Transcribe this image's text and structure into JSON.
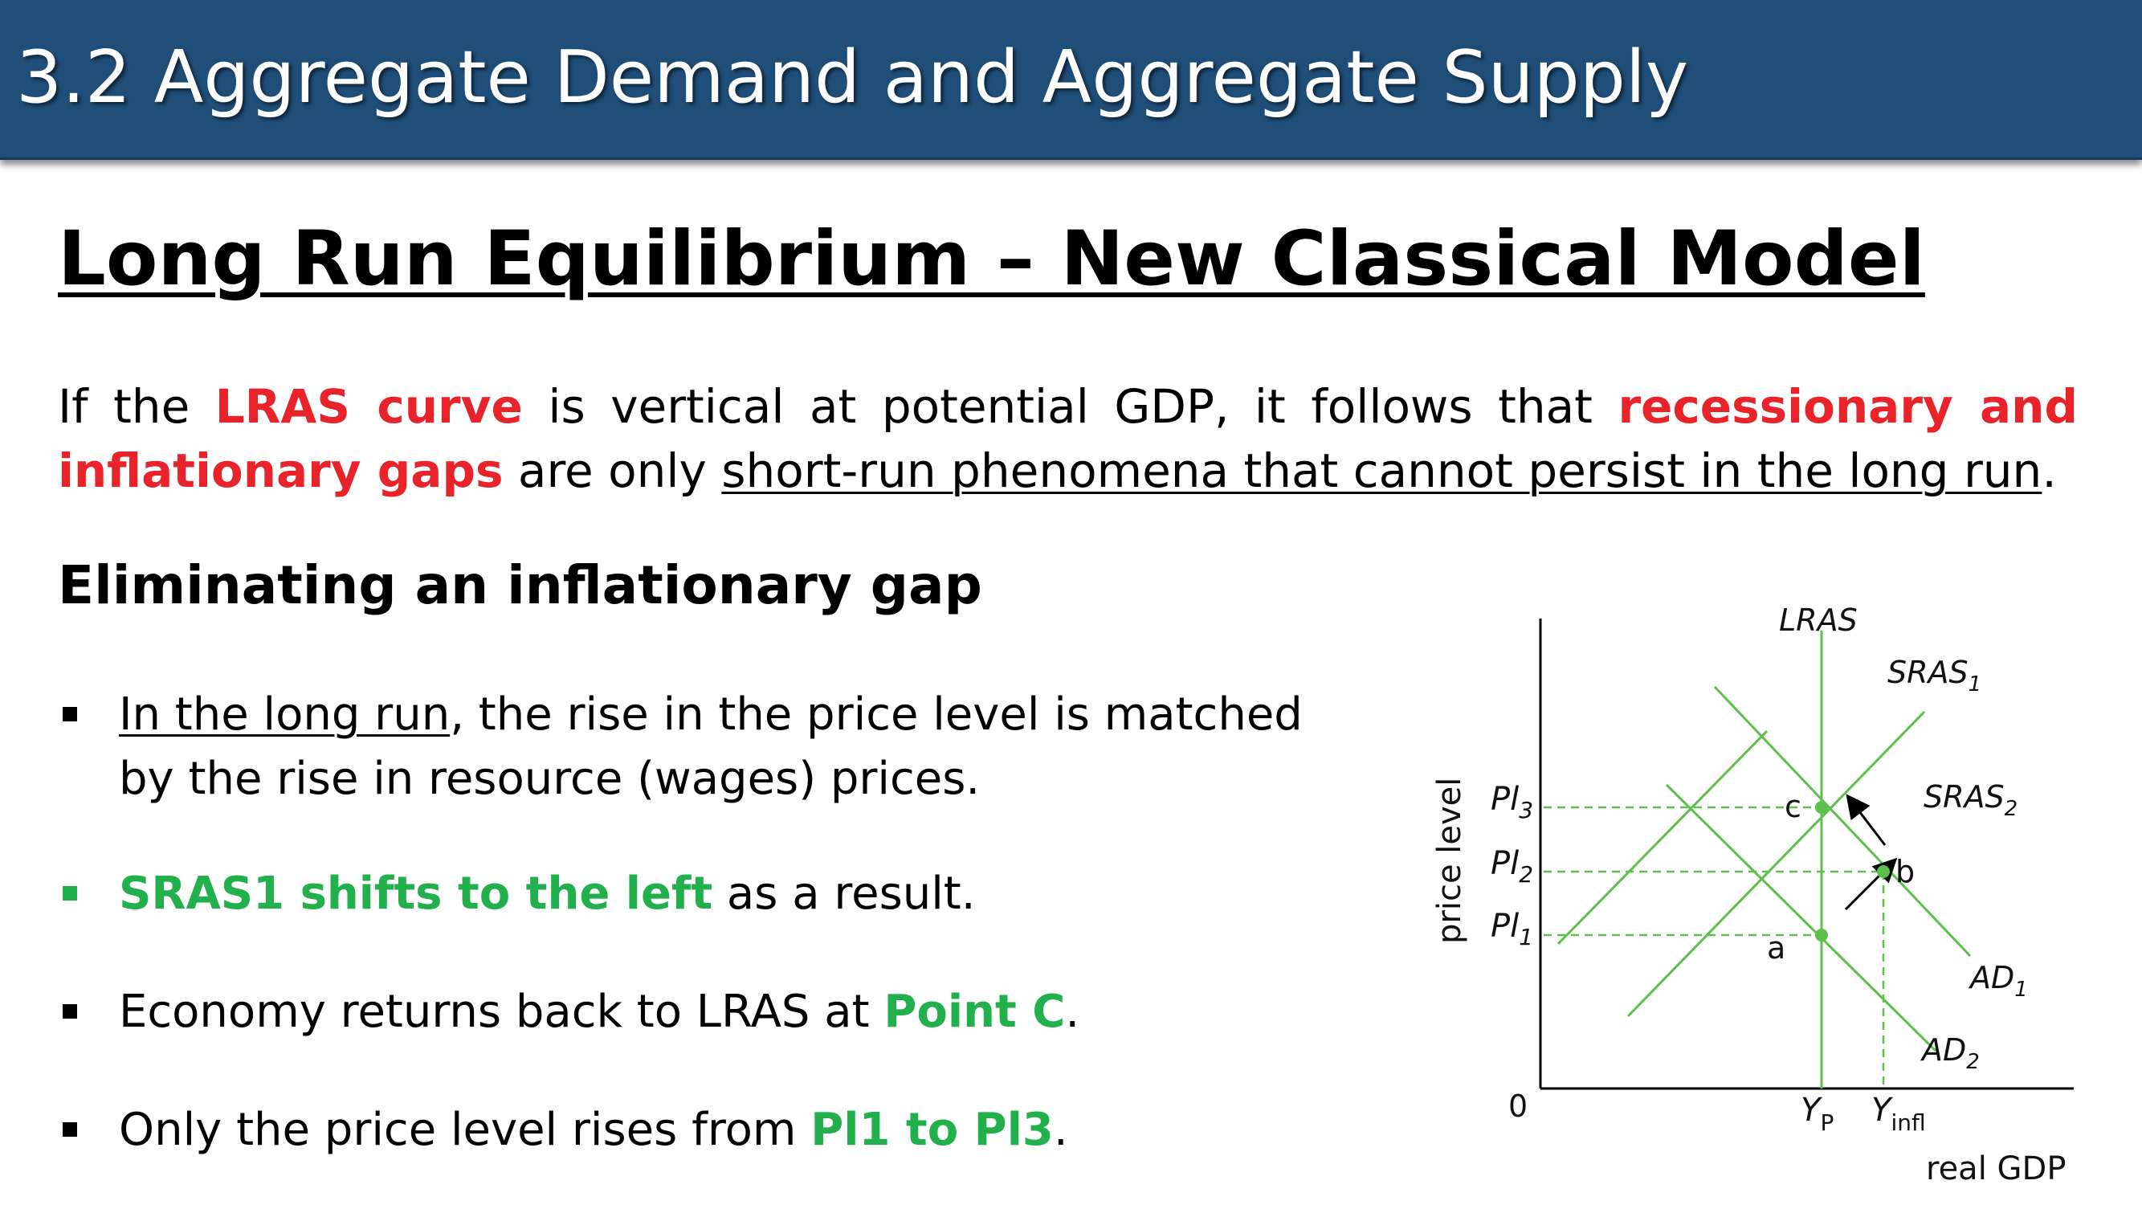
{
  "header": {
    "title": "3.2 Aggregate Demand and Aggregate Supply"
  },
  "slide_title": "Long Run Equilibrium – New Classical Model",
  "intro": {
    "p1": "If the ",
    "lras_curve": "LRAS curve",
    "p2": " is vertical at potential GDP, it follows that ",
    "gaps": "recessionary and inflationary gaps",
    "p3": " are only ",
    "underlined": "short-run phenomena that cannot persist in the long run",
    "p4": "."
  },
  "subheading": "Eliminating an inflationary gap",
  "bullets": [
    {
      "pre": "",
      "underlined": "In the long run",
      "text": ", the rise in the price level is matched by the rise in resource (wages) prices."
    },
    {
      "green": "SRAS1 shifts to the left",
      "text": " as a result."
    },
    {
      "text": "Economy returns back to LRAS at ",
      "green": "Point C",
      "post": "."
    },
    {
      "text": "Only the price level rises from ",
      "green": "Pl1 to Pl3",
      "post": "."
    }
  ],
  "diagram": {
    "colors": {
      "curve": "#5cc04b",
      "axis": "#000000",
      "dash": "#5cc04b",
      "arrow": "#000000"
    },
    "labels": {
      "lras": "LRAS",
      "sras1": "SRAS",
      "sras1_sub": "1",
      "sras2": "SRAS",
      "sras2_sub": "2",
      "ad1": "AD",
      "ad1_sub": "1",
      "ad2": "AD",
      "ad2_sub": "2",
      "pl3": "Pl",
      "pl3_sub": "3",
      "pl2": "Pl",
      "pl2_sub": "2",
      "pl1": "Pl",
      "pl1_sub": "1",
      "point_a": "a",
      "point_b": "b",
      "point_c": "c",
      "origin": "0",
      "yp": "Y",
      "yp_sub": "P",
      "yinfl": "Y",
      "yinfl_sub": "infl",
      "ylabel": "price level",
      "xlabel": "real GDP"
    }
  }
}
